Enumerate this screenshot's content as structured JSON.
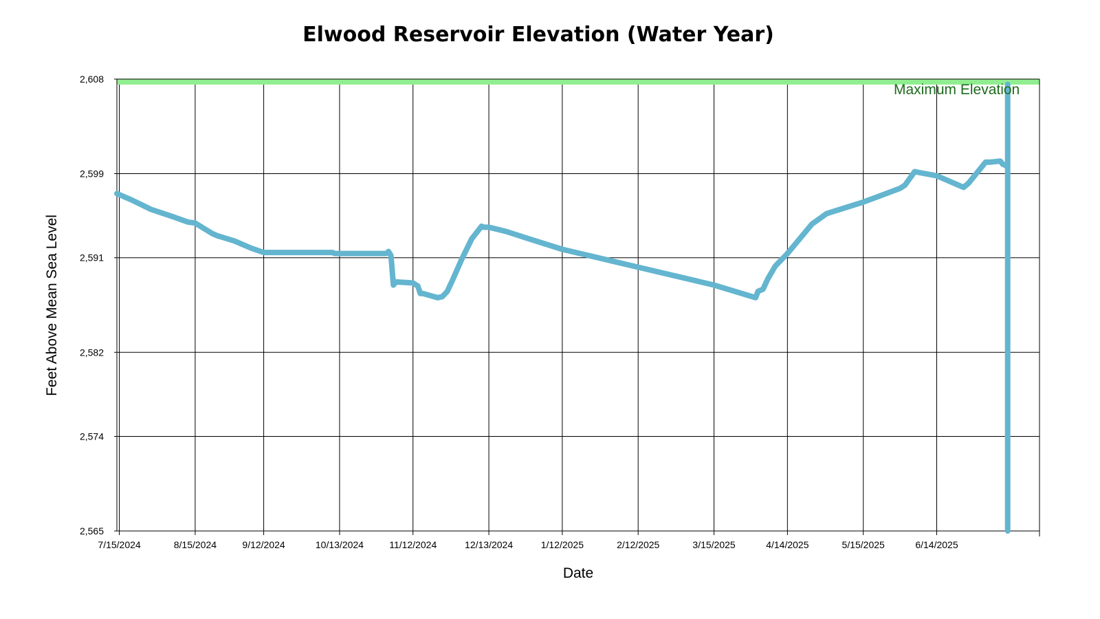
{
  "chart_data": {
    "type": "line",
    "title": "Elwood Reservoir Elevation (Water Year)",
    "xlabel": "Date",
    "ylabel": "Feet Above Mean Sea Level",
    "x_ticks": [
      "7/15/2024",
      "8/15/2024",
      "9/12/2024",
      "10/13/2024",
      "11/12/2024",
      "12/13/2024",
      "1/12/2025",
      "2/12/2025",
      "3/15/2025",
      "4/14/2025",
      "5/15/2025",
      "6/14/2025"
    ],
    "y_ticks": [
      "2,565",
      "2,574",
      "2,582",
      "2,591",
      "2,599",
      "2,608"
    ],
    "xlim": [
      "2024-07-14",
      "2025-07-26"
    ],
    "ylim": [
      2565,
      2608
    ],
    "grid": true,
    "reference_band": {
      "label": "Maximum Elevation",
      "value": 2608,
      "color": "#90ee90",
      "label_color": "#1e6b1e"
    },
    "series": [
      {
        "color": "#64b5cf",
        "x": [
          "2024-07-14",
          "2024-07-20",
          "2024-07-28",
          "2024-08-06",
          "2024-08-12",
          "2024-08-15",
          "2024-08-22",
          "2024-08-24",
          "2024-08-31",
          "2024-09-07",
          "2024-09-12",
          "2024-10-10",
          "2024-10-11",
          "2024-11-01",
          "2024-11-02",
          "2024-11-03",
          "2024-11-04",
          "2024-11-05",
          "2024-11-12",
          "2024-11-14",
          "2024-11-15",
          "2024-11-16",
          "2024-11-22",
          "2024-11-24",
          "2024-11-26",
          "2024-11-28",
          "2024-12-02",
          "2024-12-06",
          "2024-12-10",
          "2024-12-11",
          "2024-12-13",
          "2024-12-20",
          "2024-12-28",
          "2025-01-12",
          "2025-02-12",
          "2025-03-15",
          "2025-04-01",
          "2025-04-02",
          "2025-04-04",
          "2025-04-06",
          "2025-04-09",
          "2025-04-14",
          "2025-04-24",
          "2025-04-30",
          "2025-05-15",
          "2025-05-30",
          "2025-06-01",
          "2025-06-05",
          "2025-06-07",
          "2025-06-14",
          "2025-06-25",
          "2025-06-27",
          "2025-07-04",
          "2025-07-06",
          "2025-07-10",
          "2025-07-11",
          "2025-07-13",
          "2025-07-13",
          "2025-07-13"
        ],
        "values": [
          2597.1,
          2596.5,
          2595.6,
          2594.9,
          2594.4,
          2594.3,
          2593.3,
          2593.1,
          2592.6,
          2591.9,
          2591.5,
          2591.5,
          2591.4,
          2591.4,
          2591.6,
          2591.2,
          2588.4,
          2588.7,
          2588.6,
          2588.3,
          2587.6,
          2587.6,
          2587.2,
          2587.3,
          2587.8,
          2588.8,
          2590.9,
          2592.8,
          2594.0,
          2593.9,
          2593.9,
          2593.5,
          2592.9,
          2591.8,
          2590.1,
          2588.4,
          2587.2,
          2587.8,
          2588.0,
          2589.0,
          2590.2,
          2591.4,
          2594.2,
          2595.2,
          2596.3,
          2597.6,
          2597.9,
          2599.2,
          2599.1,
          2598.8,
          2597.7,
          2598.1,
          2600.1,
          2600.1,
          2600.2,
          2599.9,
          2599.7,
          2607.5,
          2565.0
        ]
      }
    ]
  }
}
